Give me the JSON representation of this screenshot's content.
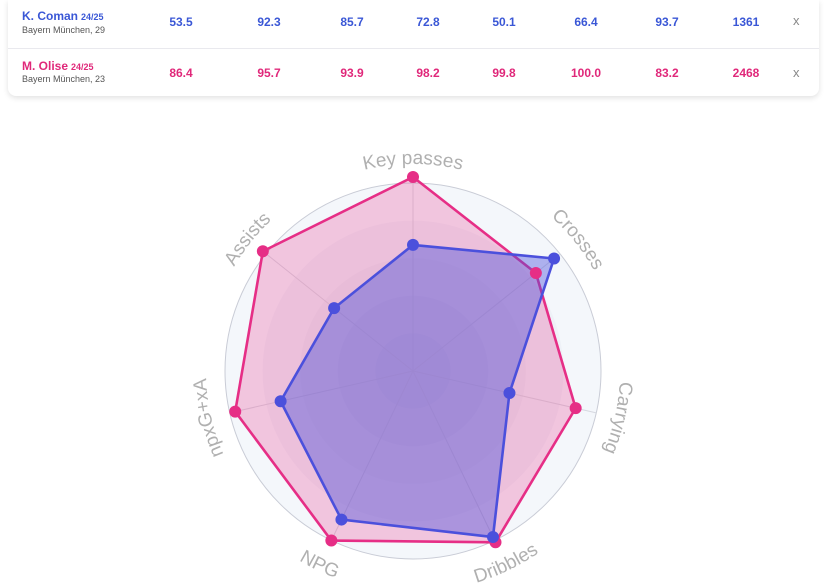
{
  "players": [
    {
      "name": "K. Coman",
      "season": "24/25",
      "club": "Bayern München, 29",
      "color": "#3a57d6",
      "values": [
        "53.5",
        "92.3",
        "85.7",
        "72.8",
        "50.1",
        "66.4",
        "93.7",
        "1361"
      ],
      "remove": "x"
    },
    {
      "name": "M. Olise",
      "season": "24/25",
      "club": "Bayern München, 23",
      "color": "#e0287a",
      "values": [
        "86.4",
        "95.7",
        "93.9",
        "98.2",
        "99.8",
        "100.0",
        "83.2",
        "2468"
      ],
      "remove": "x"
    }
  ],
  "chart_data": {
    "type": "radar",
    "axes": [
      "Key passes",
      "Crosses",
      "Carrying",
      "Dribbles",
      "NPG",
      "npxG+xA",
      "Assists"
    ],
    "range": [
      0,
      100
    ],
    "series": [
      {
        "name": "K. Coman",
        "color": "#4b50dc",
        "values": [
          65,
          93,
          51,
          95,
          85,
          70,
          52
        ]
      },
      {
        "name": "M. Olise",
        "color": "#e62e86",
        "values": [
          100,
          81,
          86,
          98,
          97,
          94,
          99
        ]
      }
    ]
  }
}
